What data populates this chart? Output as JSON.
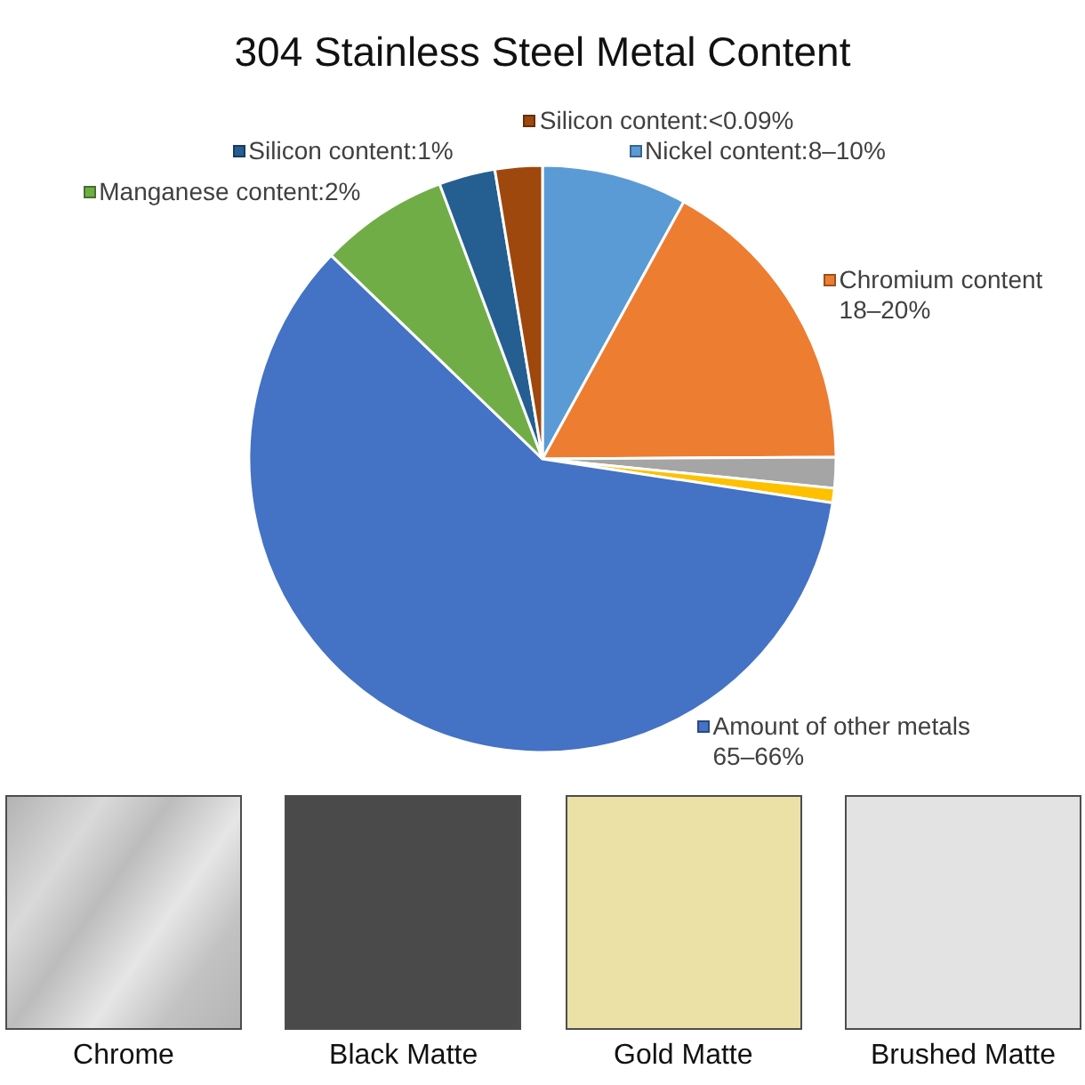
{
  "chart_data": {
    "type": "pie",
    "title": "304 Stainless Steel Metal Content",
    "categories": [
      "Nickel content:8–10%",
      "Chromium content\n18–20%",
      null,
      null,
      "Amount of other metals\n65–66%",
      "Manganese content:2%",
      "Silicon content:1%",
      "Silicon content:<0.09%"
    ],
    "values": [
      8.0,
      16.9,
      1.7,
      0.8,
      59.8,
      7.1,
      3.1,
      2.6
    ],
    "colors": [
      "#5b9bd5",
      "#ed7d31",
      "#a5a5a5",
      "#ffc000",
      "#4472c4",
      "#70ad47",
      "#255e91",
      "#9e480e"
    ],
    "legend": "top",
    "annotations": [
      "Chrome",
      "Black Matte",
      "Gold Matte",
      "Brushed Matte"
    ]
  }
}
